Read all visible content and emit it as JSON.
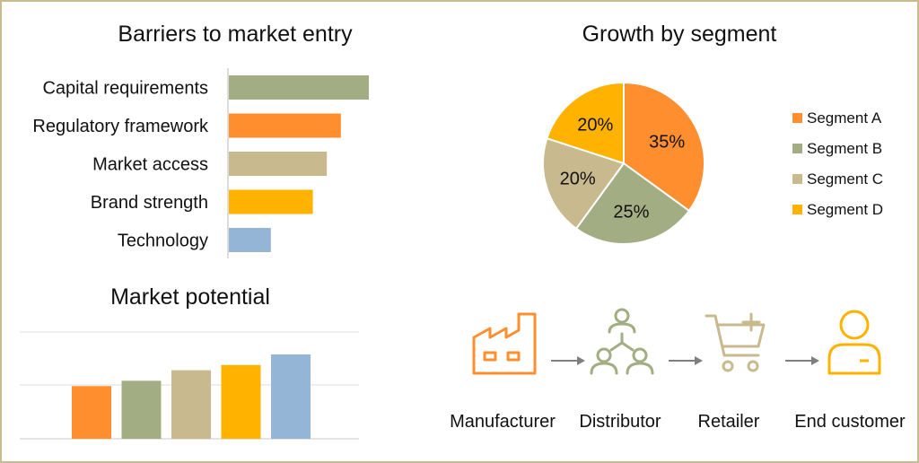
{
  "colors": {
    "orange": "#FF8F2E",
    "green": "#A3AD83",
    "tan": "#C9B98F",
    "yellow": "#FFB200",
    "blue": "#95B5D6",
    "arrow": "#7f7f7f",
    "border": "#c8bb8e"
  },
  "chart_data": [
    {
      "type": "bar",
      "orientation": "horizontal",
      "title": "Barriers to market entry",
      "categories": [
        "Capital requirements",
        "Regulatory framework",
        "Market access",
        "Brand strength",
        "Technology"
      ],
      "values": [
        100,
        80,
        70,
        60,
        30
      ],
      "colors": [
        "#A3AD83",
        "#FF8F2E",
        "#C9B98F",
        "#FFB200",
        "#95B5D6"
      ],
      "xlim": [
        0,
        100
      ],
      "axis_labels_shown": false
    },
    {
      "type": "pie",
      "title": "Growth by segment",
      "labels": [
        "Segment A",
        "Segment B",
        "Segment C",
        "Segment D"
      ],
      "values": [
        35,
        25,
        20,
        20
      ],
      "value_labels": [
        "35%",
        "25%",
        "20%",
        "20%"
      ],
      "colors": [
        "#FF8F2E",
        "#A3AD83",
        "#C9B98F",
        "#FFB200"
      ],
      "legend": "right"
    },
    {
      "type": "bar",
      "title": "Market potential",
      "values": [
        100,
        110,
        130,
        140,
        160
      ],
      "colors": [
        "#FF8F2E",
        "#A3AD83",
        "#C9B98F",
        "#FFB200",
        "#95B5D6"
      ],
      "ylim": [
        0,
        160
      ],
      "grid": true,
      "tick_labels_shown": false
    }
  ],
  "flow": {
    "steps": [
      {
        "label": "Manufacturer",
        "icon": "factory-icon",
        "color": "#FF8F2E"
      },
      {
        "label": "Distributor",
        "icon": "distributor-network-icon",
        "color": "#A3AD83"
      },
      {
        "label": "Retailer",
        "icon": "shopping-cart-icon",
        "color": "#C9B98F"
      },
      {
        "label": "End customer",
        "icon": "customer-icon",
        "color": "#FFB200"
      }
    ]
  }
}
